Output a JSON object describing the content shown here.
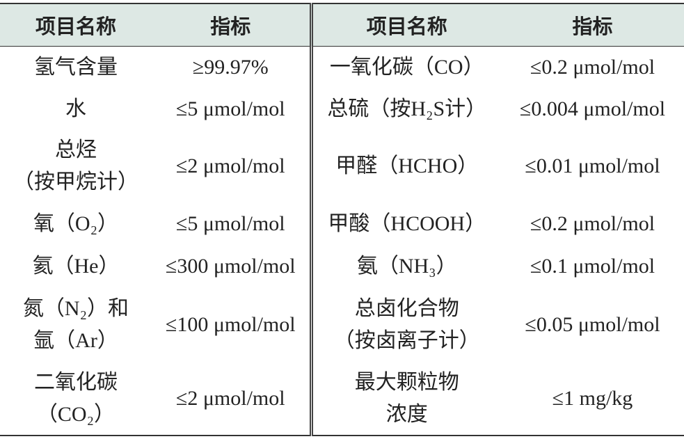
{
  "table": {
    "header": [
      "项目名称",
      "指标",
      "项目名称",
      "指标"
    ],
    "rows": [
      [
        [
          "氢气含量"
        ],
        [
          "≥99.97%"
        ],
        [
          "一氧化碳（CO）"
        ],
        [
          "≤0.2 μmol/mol"
        ]
      ],
      [
        [
          "水"
        ],
        [
          "≤5 μmol/mol"
        ],
        [
          "总硫（按H₂S计）"
        ],
        [
          "≤0.004 μmol/mol"
        ]
      ],
      [
        [
          "总烃",
          "（按甲烷计）"
        ],
        [
          "≤2 μmol/mol"
        ],
        [
          "甲醛（HCHO）"
        ],
        [
          "≤0.01 μmol/mol"
        ]
      ],
      [
        [
          "氧（O₂）"
        ],
        [
          "≤5 μmol/mol"
        ],
        [
          "甲酸（HCOOH）"
        ],
        [
          "≤0.2 μmol/mol"
        ]
      ],
      [
        [
          "氦（He）"
        ],
        [
          "≤300 μmol/mol"
        ],
        [
          "氨（NH₃）"
        ],
        [
          "≤0.1 μmol/mol"
        ]
      ],
      [
        [
          "氮（N₂）和",
          "氩（Ar）"
        ],
        [
          "≤100 μmol/mol"
        ],
        [
          "总卤化合物",
          "（按卤离子计）"
        ],
        [
          "≤0.05 μmol/mol"
        ]
      ],
      [
        [
          "二氧化碳",
          "（CO₂）"
        ],
        [
          "≤2 μmol/mol"
        ],
        [
          "最大颗粒物",
          "浓度"
        ],
        [
          "≤1 mg/kg"
        ]
      ]
    ]
  }
}
